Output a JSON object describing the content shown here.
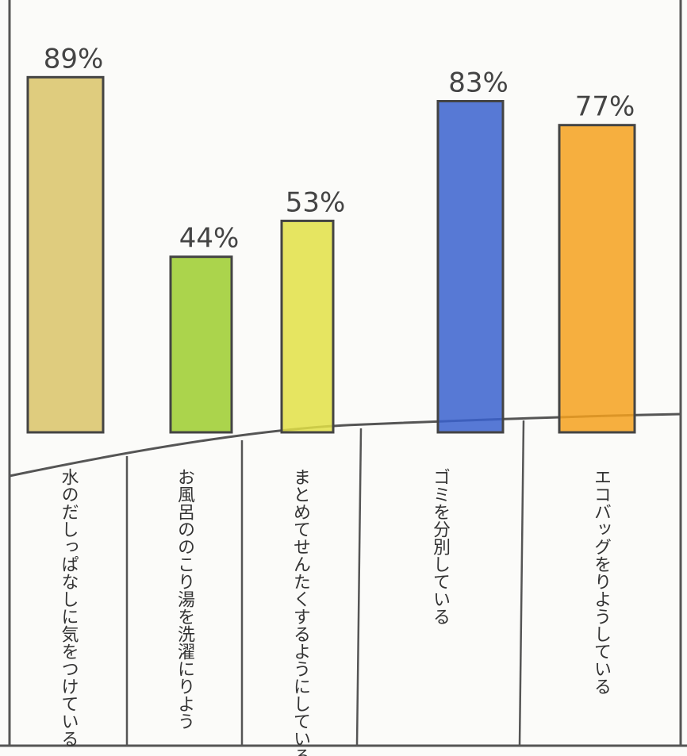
{
  "chart_data": {
    "type": "bar",
    "categories": [
      "水のだしっぱなしに気をつけている",
      "お風呂ののこり湯を洗濯にりよう",
      "まとめてせんたくするようにしている",
      "ゴミを分別している",
      "エコバッグをりようしている"
    ],
    "values": [
      89,
      44,
      53,
      83,
      77
    ],
    "value_labels": [
      "89%",
      "44%",
      "53%",
      "83%",
      "77%"
    ],
    "colors": [
      "#d9c368",
      "#9ccc2e",
      "#e2e046",
      "#3a62cf",
      "#f5a11e"
    ]
  }
}
